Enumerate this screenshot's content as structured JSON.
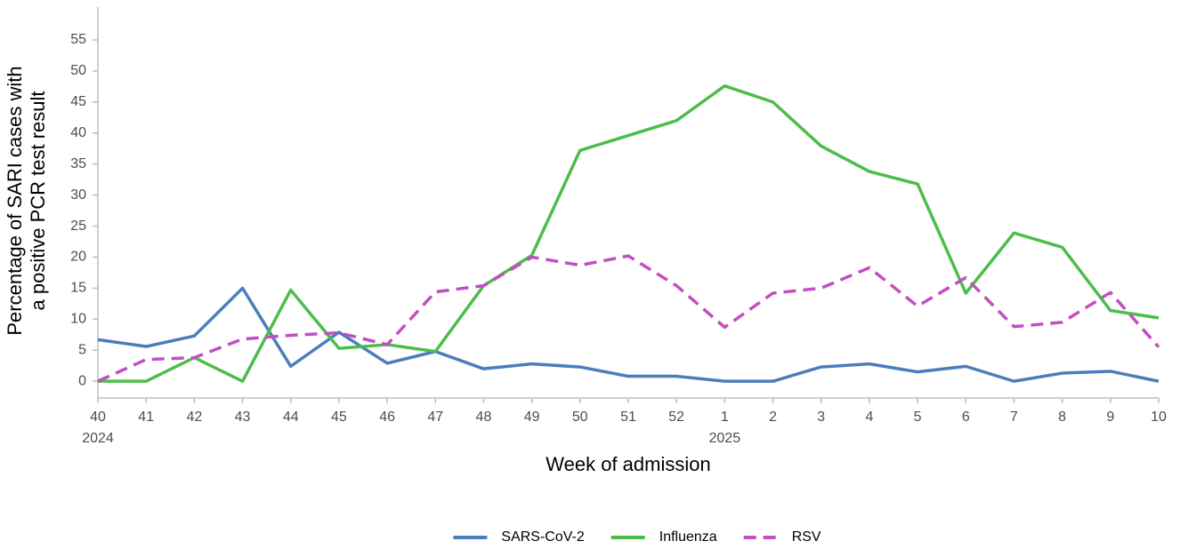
{
  "chart_data": {
    "type": "line",
    "xlabel": "Week of admission",
    "ylabel": [
      "Percentage of SARI cases with",
      "a positive PCR test result"
    ],
    "categories": [
      "40",
      "41",
      "42",
      "43",
      "44",
      "45",
      "46",
      "47",
      "48",
      "49",
      "50",
      "51",
      "52",
      "1",
      "2",
      "3",
      "4",
      "5",
      "6",
      "7",
      "8",
      "9",
      "10"
    ],
    "annotations": [
      {
        "text": "2024",
        "category": "40"
      },
      {
        "text": "2025",
        "category": "1"
      }
    ],
    "series": [
      {
        "name": "SARS-CoV-2",
        "color": "#4a7ebb",
        "dash": false,
        "values": [
          6.7,
          5.6,
          7.3,
          15,
          2.4,
          7.9,
          2.9,
          4.8,
          2,
          2.8,
          2.3,
          0.8,
          0.8,
          0,
          0,
          2.3,
          2.8,
          1.5,
          2.4,
          0,
          1.3,
          1.6,
          0
        ]
      },
      {
        "name": "Influenza",
        "color": "#4dbd4a",
        "dash": false,
        "values": [
          0,
          0,
          3.8,
          0,
          14.7,
          5.3,
          5.9,
          4.8,
          15.4,
          20.3,
          37.2,
          39.6,
          42,
          47.6,
          45,
          37.9,
          33.8,
          31.8,
          14.2,
          23.9,
          21.6,
          11.4,
          10.2
        ]
      },
      {
        "name": "RSV",
        "color": "#c24fc2",
        "dash": true,
        "values": [
          0,
          3.5,
          3.8,
          6.8,
          7.4,
          7.8,
          5.9,
          14.4,
          15.4,
          20,
          18.7,
          20.2,
          15.4,
          8.7,
          14.2,
          15,
          18.3,
          12.1,
          16.7,
          8.8,
          9.5,
          14.3,
          5.5
        ]
      }
    ],
    "ylim": [
      -2.7,
      60.3
    ],
    "yticks": [
      0,
      5,
      10,
      15,
      20,
      25,
      30,
      35,
      40,
      45,
      50,
      55
    ],
    "grid": false,
    "legend": "bottom"
  }
}
